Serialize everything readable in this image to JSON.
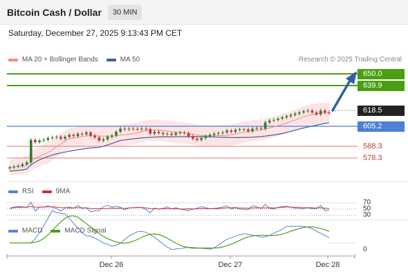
{
  "header": {
    "title": "Bitcoin Cash / Dollar",
    "interval": "30 MIN",
    "datetime": "Saturday, December 27, 2025 9:13:43 PM CET"
  },
  "legend": {
    "ma20_label": "MA 20 + Bollinger Bands",
    "ma50_label": "MA 50",
    "research": "Research © 2025 Trading Central",
    "rsi_label": "RSI",
    "rsi_ma_label": "9MA",
    "macd_label": "MACD",
    "macd_signal_label": "MACD Signal"
  },
  "colors": {
    "candle_up": "#2e7d32",
    "candle_down": "#d32f2f",
    "bollinger_fill": "#fde0e0",
    "ma20": "#f28b82",
    "ma50": "#3f5fa3",
    "resistance": "#4a9e12",
    "support": "#e57373",
    "pivot": "#4f7fd6",
    "current": "#222222",
    "arrow": "#2f5ea8",
    "rsi": "#5b7fd6",
    "rsi_ma": "#d32f2f",
    "macd": "#5b7fd6",
    "macd_signal": "#4a9e12"
  },
  "price_levels": {
    "resistance_2": "650.0",
    "resistance_1": "639.9",
    "current": "618.5",
    "pivot": "605.2",
    "support_1": "588.3",
    "support_2": "578.3"
  },
  "indicator_ticks": {
    "rsi_70": "70",
    "rsi_50": "50",
    "rsi_30": "30",
    "macd_0": "0"
  },
  "x_labels": [
    "Dec 26",
    "Dec 27",
    "Dec 28"
  ],
  "chart_data": {
    "type": "candlestick",
    "title": "Bitcoin Cash / Dollar",
    "interval": "30 MIN",
    "ylim": [
      572,
      656
    ],
    "x_labels": [
      "Dec 26",
      "Dec 27",
      "Dec 28"
    ],
    "closes": [
      575.0,
      575.6,
      576.2,
      577.5,
      579.0,
      597.0,
      595.2,
      596.5,
      597.0,
      598.5,
      599.0,
      599.5,
      598.0,
      599.5,
      601.0,
      600.0,
      602.0,
      601.5,
      603.0,
      600.5,
      599.0,
      596.5,
      597.5,
      599.5,
      600.5,
      603.5,
      606.0,
      605.5,
      606.0,
      605.8,
      605.5,
      606.0,
      605.5,
      602.0,
      603.5,
      602.5,
      601.5,
      602.0,
      601.0,
      602.5,
      603.0,
      602.5,
      600.0,
      598.0,
      597.0,
      598.5,
      600.0,
      601.0,
      602.0,
      602.5,
      603.0,
      604.5,
      603.5,
      605.0,
      605.5,
      605.5,
      604.0,
      606.0,
      606.5,
      606.0,
      611.0,
      612.5,
      613.0,
      614.0,
      615.0,
      616.0,
      617.0,
      618.0,
      619.0,
      620.0,
      620.5,
      619.0,
      617.5,
      620.5,
      619.0,
      618.5
    ],
    "ma20_end": 612.0,
    "ma50_end": 605.5,
    "rsi_end": 55,
    "macd_zero": 0
  }
}
